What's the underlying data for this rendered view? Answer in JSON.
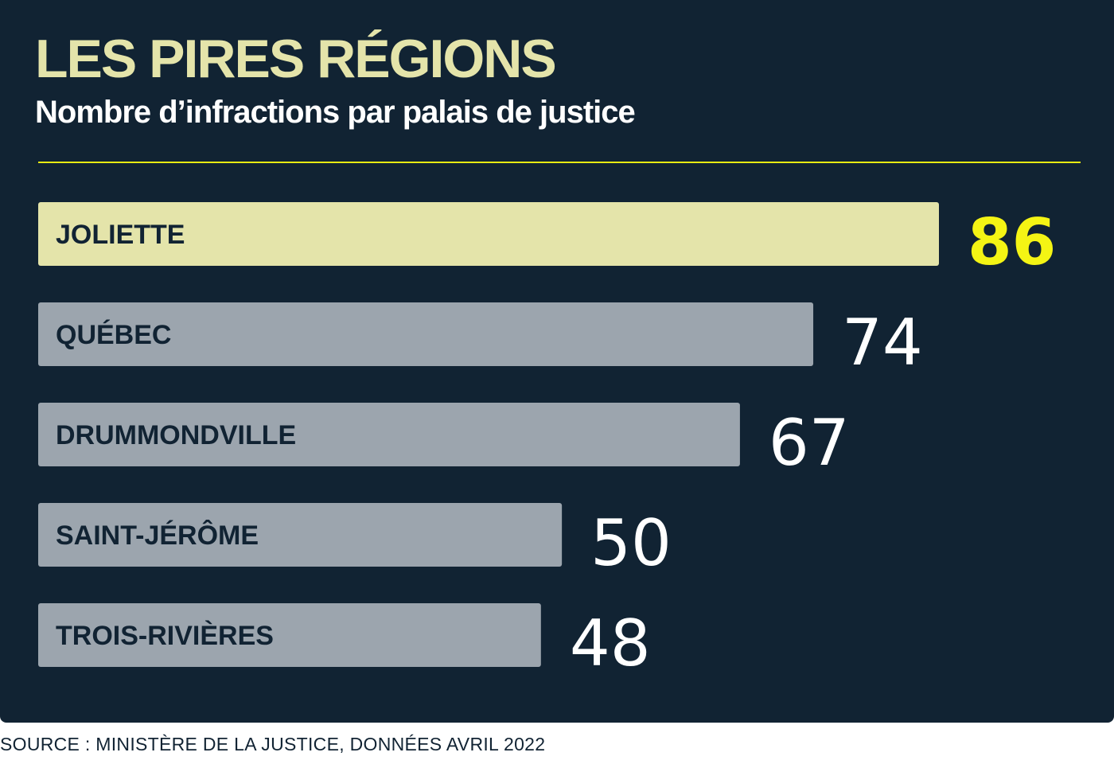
{
  "chart_data": {
    "type": "bar",
    "orientation": "horizontal",
    "title": "LES PIRES RÉGIONS",
    "subtitle": "Nombre d’infractions par palais de justice",
    "categories": [
      "JOLIETTE",
      "QUÉBEC",
      "DRUMMONDVILLE",
      "SAINT-JÉRÔME",
      "TROIS-RIVIÈRES"
    ],
    "values": [
      86,
      74,
      67,
      50,
      48
    ],
    "highlight_index": 0,
    "xlim": [
      0,
      86
    ],
    "grid": false,
    "legend": "none",
    "colors": {
      "background": "#112333",
      "bar": "#9ca5ae",
      "bar_highlight": "#e4e4aa",
      "title": "#e4e4aa",
      "value_highlight": "#f4f414",
      "value": "#ffffff",
      "rule": "#e8ea12"
    }
  },
  "source": "SOURCE : MINISTÈRE DE LA JUSTICE, DONNÉES AVRIL 2022"
}
